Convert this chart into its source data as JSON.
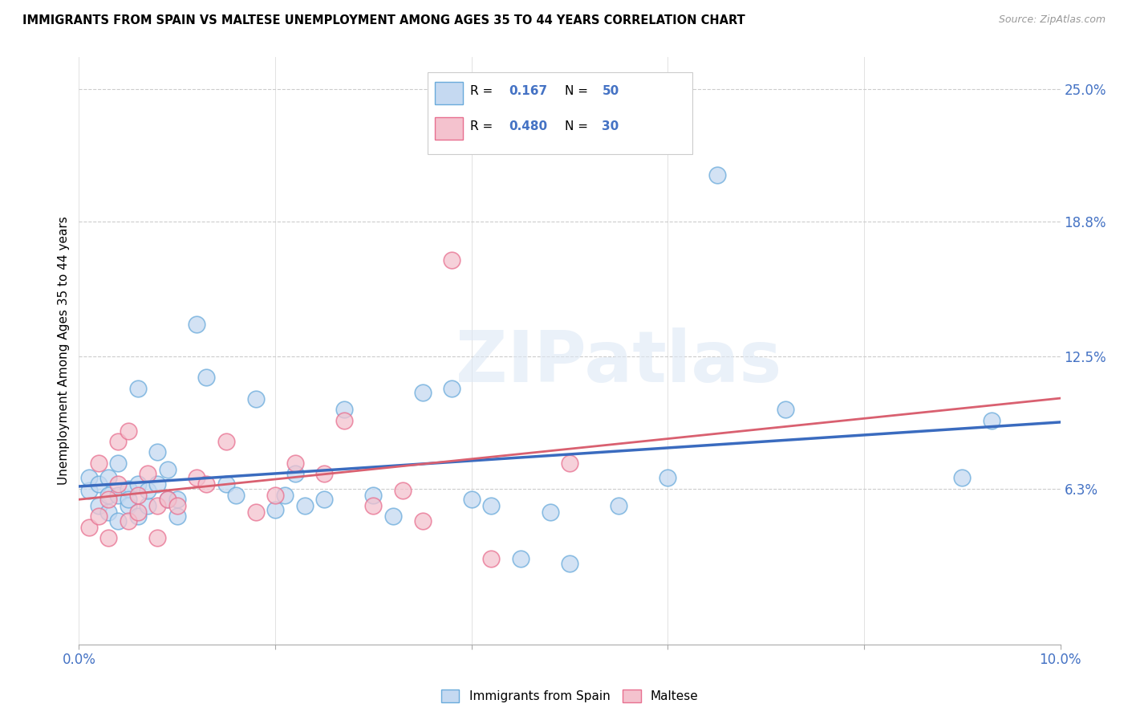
{
  "title": "IMMIGRANTS FROM SPAIN VS MALTESE UNEMPLOYMENT AMONG AGES 35 TO 44 YEARS CORRELATION CHART",
  "source": "Source: ZipAtlas.com",
  "ylabel": "Unemployment Among Ages 35 to 44 years",
  "xlim": [
    0,
    0.1
  ],
  "ylim": [
    -0.01,
    0.265
  ],
  "xtick_positions": [
    0.0,
    0.02,
    0.04,
    0.06,
    0.08,
    0.1
  ],
  "xtick_labels_show": [
    "0.0%",
    "",
    "",
    "",
    "",
    "10.0%"
  ],
  "yticks_right": [
    0.063,
    0.125,
    0.188,
    0.25
  ],
  "yticks_right_labels": [
    "6.3%",
    "12.5%",
    "18.8%",
    "25.0%"
  ],
  "blue_face_color": "#c5d9f1",
  "blue_edge_color": "#6aabdb",
  "pink_face_color": "#f4c2ce",
  "pink_edge_color": "#e87090",
  "blue_line_color": "#3a6bbf",
  "pink_line_color": "#d96070",
  "legend_label_blue": "Immigrants from Spain",
  "legend_label_pink": "Maltese",
  "watermark": "ZIPatlas",
  "blue_x": [
    0.001,
    0.001,
    0.002,
    0.002,
    0.003,
    0.003,
    0.003,
    0.004,
    0.004,
    0.004,
    0.005,
    0.005,
    0.005,
    0.006,
    0.006,
    0.006,
    0.007,
    0.007,
    0.008,
    0.008,
    0.009,
    0.009,
    0.01,
    0.01,
    0.012,
    0.013,
    0.015,
    0.016,
    0.018,
    0.02,
    0.021,
    0.022,
    0.023,
    0.025,
    0.027,
    0.03,
    0.032,
    0.035,
    0.038,
    0.04,
    0.042,
    0.045,
    0.048,
    0.05,
    0.055,
    0.06,
    0.065,
    0.072,
    0.09,
    0.093
  ],
  "blue_y": [
    0.062,
    0.068,
    0.055,
    0.065,
    0.052,
    0.06,
    0.068,
    0.048,
    0.06,
    0.075,
    0.055,
    0.063,
    0.058,
    0.05,
    0.065,
    0.11,
    0.055,
    0.062,
    0.065,
    0.08,
    0.058,
    0.072,
    0.05,
    0.058,
    0.14,
    0.115,
    0.065,
    0.06,
    0.105,
    0.053,
    0.06,
    0.07,
    0.055,
    0.058,
    0.1,
    0.06,
    0.05,
    0.108,
    0.11,
    0.058,
    0.055,
    0.03,
    0.052,
    0.028,
    0.055,
    0.068,
    0.21,
    0.1,
    0.068,
    0.095
  ],
  "pink_x": [
    0.001,
    0.002,
    0.002,
    0.003,
    0.003,
    0.004,
    0.004,
    0.005,
    0.005,
    0.006,
    0.006,
    0.007,
    0.008,
    0.008,
    0.009,
    0.01,
    0.012,
    0.013,
    0.015,
    0.018,
    0.02,
    0.022,
    0.025,
    0.027,
    0.03,
    0.033,
    0.035,
    0.038,
    0.042,
    0.05
  ],
  "pink_y": [
    0.045,
    0.05,
    0.075,
    0.04,
    0.058,
    0.065,
    0.085,
    0.048,
    0.09,
    0.052,
    0.06,
    0.07,
    0.055,
    0.04,
    0.058,
    0.055,
    0.068,
    0.065,
    0.085,
    0.052,
    0.06,
    0.075,
    0.07,
    0.095,
    0.055,
    0.062,
    0.048,
    0.17,
    0.03,
    0.075
  ]
}
